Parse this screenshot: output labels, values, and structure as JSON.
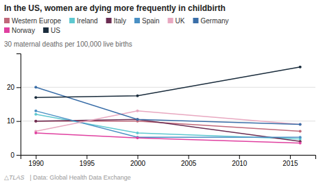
{
  "chart_data": {
    "type": "line",
    "title": "In the US, women are dying more frequently in childbirth",
    "y_label": "30 maternal deaths per 100,000 live births",
    "annotations": [
      "△TLAS",
      "|  Data: Global Health Data Exchange"
    ],
    "x": [
      1990,
      2000,
      2016
    ],
    "series": [
      {
        "name": "Western Europe",
        "color": "#c0687a",
        "values": [
          10.0,
          10.0,
          7.0
        ]
      },
      {
        "name": "Ireland",
        "color": "#5ec8d0",
        "values": [
          12.0,
          6.5,
          4.7
        ]
      },
      {
        "name": "Italy",
        "color": "#6b2d52",
        "values": [
          10.0,
          10.5,
          4.0
        ]
      },
      {
        "name": "Spain",
        "color": "#4a90c4",
        "values": [
          13.0,
          5.2,
          5.2
        ]
      },
      {
        "name": "UK",
        "color": "#e8a8c0",
        "values": [
          7.0,
          13.0,
          9.0
        ]
      },
      {
        "name": "Germany",
        "color": "#3a6ea8",
        "values": [
          20.0,
          10.5,
          9.0
        ]
      },
      {
        "name": "Norway",
        "color": "#e040a0",
        "values": [
          6.5,
          5.0,
          3.5
        ]
      },
      {
        "name": "US",
        "color": "#1a2c3c",
        "values": [
          17.0,
          17.5,
          26.0
        ]
      }
    ],
    "xlim": [
      1988.5,
      2017.5
    ],
    "xticks": [
      1990,
      1995,
      2000,
      2005,
      2010,
      2015
    ],
    "ylim": [
      0,
      30
    ],
    "yticks": [
      0,
      10,
      20
    ],
    "grid": true,
    "legend": "top",
    "marker": "circle"
  }
}
